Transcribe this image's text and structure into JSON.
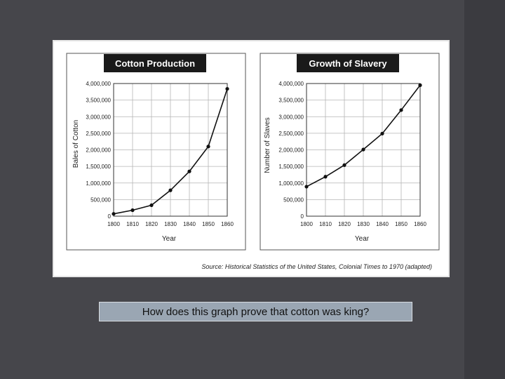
{
  "slide": {
    "question": "How does this graph prove that cotton was king?",
    "background_color": "#46464b",
    "source": "Source: Historical Statistics of the United States, Colonial Times to 1970 (adapted)"
  },
  "chart_data": [
    {
      "type": "line",
      "title": "Cotton Production",
      "xlabel": "Year",
      "ylabel": "Bales of Cotton",
      "ylim": [
        0,
        4000000
      ],
      "x": [
        1800,
        1810,
        1820,
        1830,
        1840,
        1850,
        1860
      ],
      "x_tick_labels": [
        "1800",
        "1810",
        "1820",
        "1830",
        "1840",
        "1850",
        "1860"
      ],
      "y_tick_labels": [
        "0",
        "500,000",
        "1,000,000",
        "1,500,000",
        "2,000,000",
        "2,500,000",
        "3,000,000",
        "3,500,000",
        "4,000,000"
      ],
      "y_ticks": [
        0,
        500000,
        1000000,
        1500000,
        2000000,
        2500000,
        3000000,
        3500000,
        4000000
      ],
      "values": [
        70000,
        180000,
        330000,
        780000,
        1350000,
        2100000,
        3840000
      ],
      "grid": true
    },
    {
      "type": "line",
      "title": "Growth of Slavery",
      "xlabel": "Year",
      "ylabel": "Number of Slaves",
      "ylim": [
        0,
        4000000
      ],
      "x": [
        1800,
        1810,
        1820,
        1830,
        1840,
        1850,
        1860
      ],
      "x_tick_labels": [
        "1800",
        "1810",
        "1820",
        "1830",
        "1840",
        "1850",
        "1860"
      ],
      "y_tick_labels": [
        "0",
        "500,000",
        "1,000,000",
        "1,500,000",
        "2,000,000",
        "2,500,000",
        "3,000,000",
        "3,500,000",
        "4,000,000"
      ],
      "y_ticks": [
        0,
        500000,
        1000000,
        1500000,
        2000000,
        2500000,
        3000000,
        3500000,
        4000000
      ],
      "values": [
        890000,
        1190000,
        1540000,
        2010000,
        2490000,
        3200000,
        3950000
      ],
      "grid": true
    }
  ]
}
